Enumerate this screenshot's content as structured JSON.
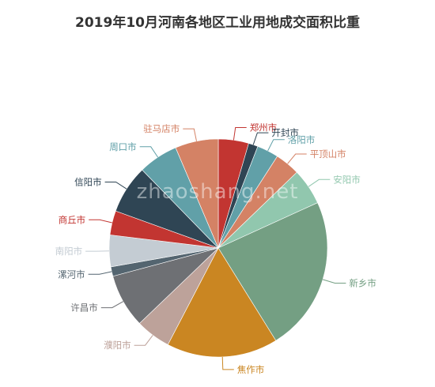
{
  "chart_data": {
    "type": "pie",
    "title": "2019年10月河南各地区工业用地成交面积比重",
    "watermark": "zhaoshang.net",
    "slices": [
      {
        "label": "郑州市",
        "value": 4.5,
        "color": "#c23531"
      },
      {
        "label": "开封市",
        "value": 1.4,
        "color": "#2f4554"
      },
      {
        "label": "洛阳市",
        "value": 3.2,
        "color": "#61a0a8"
      },
      {
        "label": "平顶山市",
        "value": 3.7,
        "color": "#d48265"
      },
      {
        "label": "安阳市",
        "value": 5.4,
        "color": "#91c7ae"
      },
      {
        "label": "新乡市",
        "value": 23.0,
        "color": "#749f83"
      },
      {
        "label": "焦作市",
        "value": 16.5,
        "color": "#ca8622"
      },
      {
        "label": "濮阳市",
        "value": 5.2,
        "color": "#bda29a"
      },
      {
        "label": "许昌市",
        "value": 8.0,
        "color": "#6e7074"
      },
      {
        "label": "漯河市",
        "value": 1.4,
        "color": "#546570"
      },
      {
        "label": "南阳市",
        "value": 4.7,
        "color": "#c4ccd3"
      },
      {
        "label": "商丘市",
        "value": 3.6,
        "color": "#c23531"
      },
      {
        "label": "信阳市",
        "value": 7.2,
        "color": "#2f4554"
      },
      {
        "label": "周口市",
        "value": 5.9,
        "color": "#61a0a8"
      },
      {
        "label": "驻马店市",
        "value": 6.4,
        "color": "#d48265"
      }
    ]
  }
}
